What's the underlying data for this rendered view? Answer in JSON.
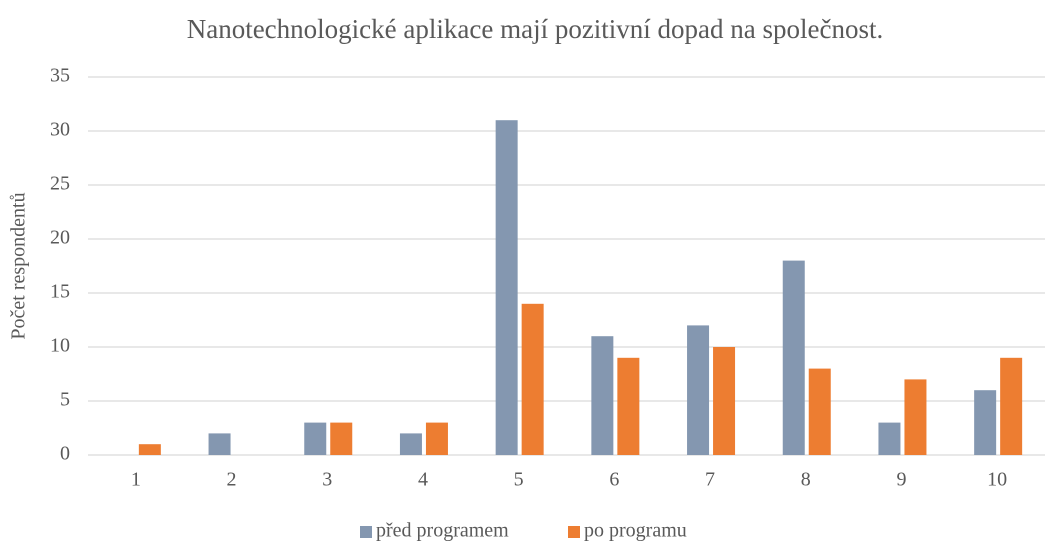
{
  "chart_data": {
    "type": "bar",
    "title": "Nanotechnologické aplikace mají pozitivní dopad na společnost.",
    "y_label": "Počet respondentů",
    "categories": [
      "1",
      "2",
      "3",
      "4",
      "5",
      "6",
      "7",
      "8",
      "9",
      "10"
    ],
    "series": [
      {
        "name": "před programem",
        "color": "#8497b0",
        "values": [
          0,
          2,
          3,
          2,
          31,
          11,
          12,
          18,
          3,
          6
        ]
      },
      {
        "name": "po programu",
        "color": "#ed7d31",
        "values": [
          1,
          0,
          3,
          3,
          14,
          9,
          10,
          8,
          7,
          9
        ]
      }
    ],
    "ylim": [
      0,
      35
    ],
    "yticks": [
      0,
      5,
      10,
      15,
      20,
      25,
      30,
      35
    ],
    "grid": true,
    "legend": "bottom"
  }
}
